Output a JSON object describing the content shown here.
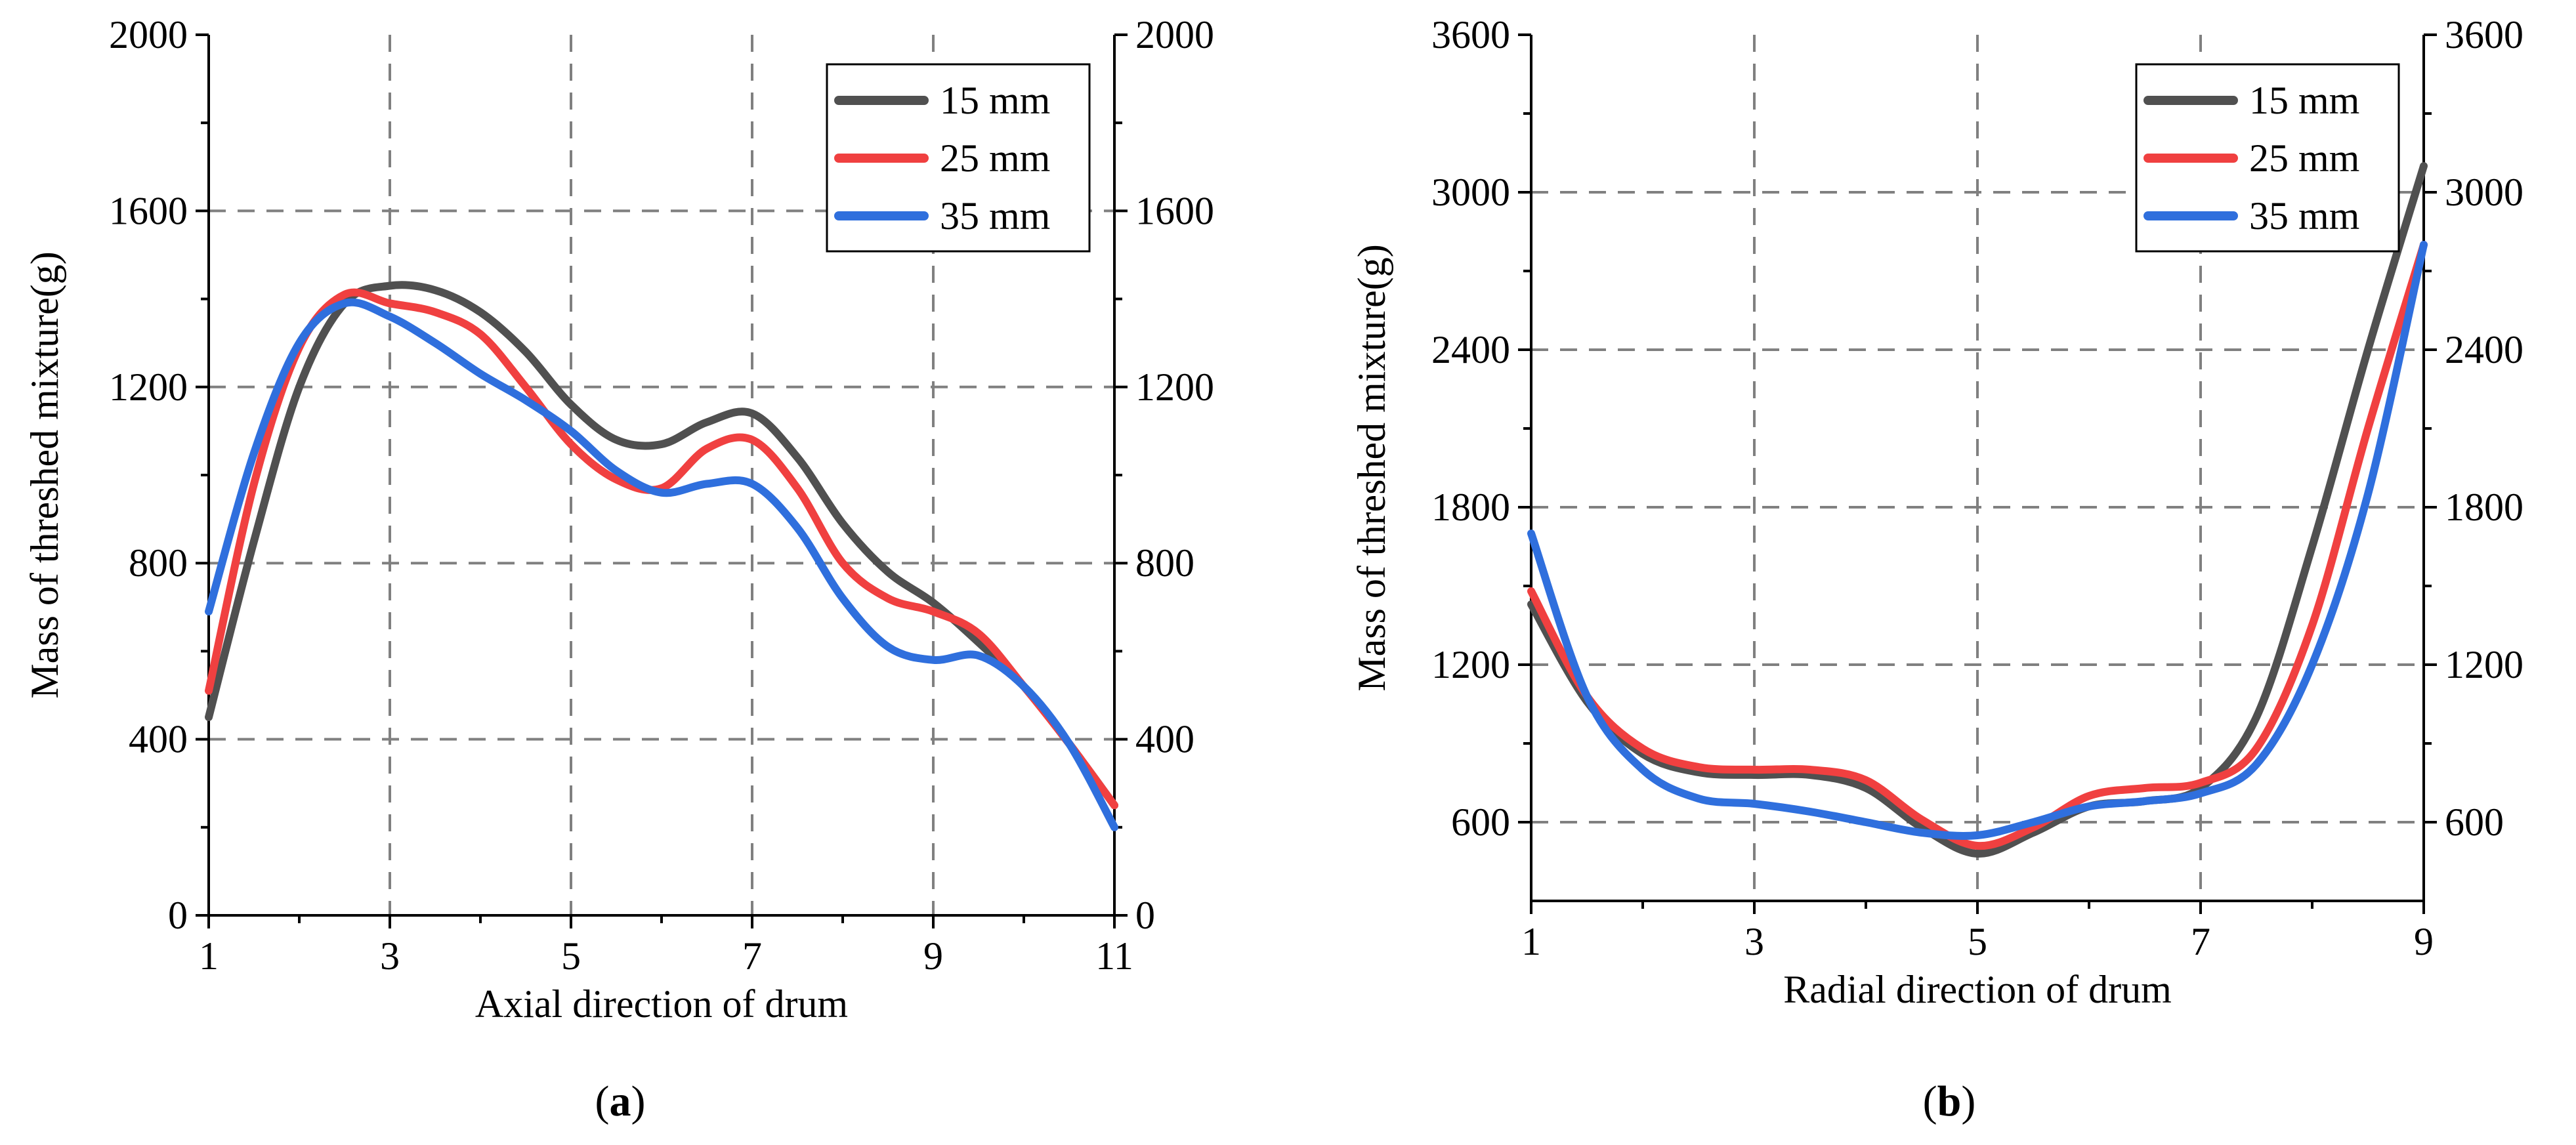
{
  "chart_data": [
    {
      "type": "line",
      "panel_label": "a",
      "xlabel": "Axial direction of drum",
      "ylabel": "Mass of threshed mixture(g)",
      "xlim": [
        1,
        11
      ],
      "ylim": [
        0,
        2000
      ],
      "xticks": [
        1,
        3,
        5,
        7,
        9,
        11
      ],
      "yticks": [
        0,
        400,
        800,
        1200,
        1600,
        2000
      ],
      "grid": true,
      "legend_position": "top-right",
      "series": [
        {
          "name": "15 mm",
          "color": "#505050",
          "x": [
            1,
            1.5,
            2,
            2.5,
            3,
            3.5,
            4,
            4.5,
            5,
            5.5,
            6,
            6.5,
            7,
            7.5,
            8,
            8.5,
            9,
            9.5,
            10,
            10.5,
            11
          ],
          "y": [
            450,
            850,
            1200,
            1390,
            1430,
            1420,
            1370,
            1280,
            1160,
            1080,
            1070,
            1120,
            1140,
            1040,
            890,
            780,
            710,
            620,
            520,
            390,
            250
          ]
        },
        {
          "name": "25 mm",
          "color": "#F04040",
          "x": [
            1,
            1.5,
            2,
            2.5,
            3,
            3.5,
            4,
            4.5,
            5,
            5.5,
            6,
            6.5,
            7,
            7.5,
            8,
            8.5,
            9,
            9.5,
            10,
            10.5,
            11
          ],
          "y": [
            510,
            980,
            1290,
            1410,
            1390,
            1370,
            1320,
            1200,
            1070,
            990,
            970,
            1060,
            1080,
            970,
            800,
            720,
            690,
            640,
            520,
            390,
            250
          ]
        },
        {
          "name": "35 mm",
          "color": "#2F6FDD",
          "x": [
            1,
            1.5,
            2,
            2.5,
            3,
            3.5,
            4,
            4.5,
            5,
            5.5,
            6,
            6.5,
            7,
            7.5,
            8,
            8.5,
            9,
            9.5,
            10,
            10.5,
            11
          ],
          "y": [
            690,
            1050,
            1300,
            1390,
            1360,
            1300,
            1230,
            1170,
            1100,
            1010,
            960,
            980,
            980,
            880,
            720,
            610,
            580,
            590,
            520,
            390,
            200
          ]
        }
      ]
    },
    {
      "type": "line",
      "panel_label": "b",
      "xlabel": "Radial direction of drum",
      "ylabel": "Mass of threshed mixture(g)",
      "xlim": [
        1,
        9
      ],
      "ylim": [
        300,
        3600
      ],
      "xticks": [
        1,
        3,
        5,
        7,
        9
      ],
      "yticks": [
        600,
        1200,
        1800,
        2400,
        3000,
        3600
      ],
      "grid": true,
      "legend_position": "top-right",
      "series": [
        {
          "name": "15 mm",
          "color": "#505050",
          "x": [
            1,
            1.5,
            2,
            2.5,
            3,
            3.5,
            4,
            4.5,
            5,
            5.5,
            6,
            6.5,
            7,
            7.5,
            8,
            8.5,
            9
          ],
          "y": [
            1430,
            1060,
            860,
            790,
            780,
            780,
            730,
            580,
            480,
            560,
            660,
            680,
            730,
            1000,
            1650,
            2400,
            3100
          ]
        },
        {
          "name": "25 mm",
          "color": "#F04040",
          "x": [
            1,
            1.5,
            2,
            2.5,
            3,
            3.5,
            4,
            4.5,
            5,
            5.5,
            6,
            6.5,
            7,
            7.5,
            8,
            8.5,
            9
          ],
          "y": [
            1480,
            1080,
            880,
            810,
            800,
            800,
            760,
            610,
            510,
            580,
            700,
            730,
            750,
            880,
            1350,
            2100,
            2800
          ]
        },
        {
          "name": "35 mm",
          "color": "#2F6FDD",
          "x": [
            1,
            1.5,
            2,
            2.5,
            3,
            3.5,
            4,
            4.5,
            5,
            5.5,
            6,
            6.5,
            7,
            7.5,
            8,
            8.5,
            9
          ],
          "y": [
            1700,
            1080,
            800,
            690,
            670,
            640,
            600,
            560,
            550,
            600,
            660,
            680,
            710,
            820,
            1200,
            1850,
            2800
          ]
        }
      ]
    }
  ]
}
